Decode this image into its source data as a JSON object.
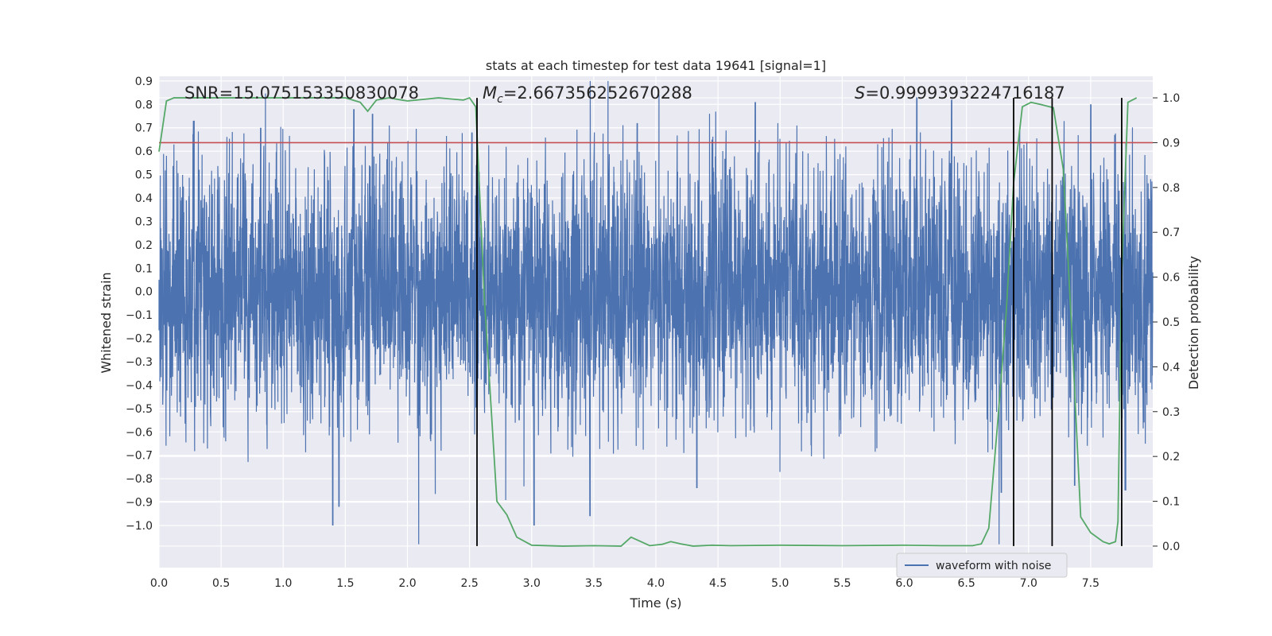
{
  "chart_data": {
    "type": "line",
    "title": "stats at each timestep for test data 19641 [signal=1]",
    "xlabel": "Time (s)",
    "ylabel": "Whitened strain",
    "y2label": "Detection probability",
    "xlim": [
      0.0,
      8.0
    ],
    "ylim": [
      -1.18,
      0.92
    ],
    "y2lim": [
      -0.048,
      1.048
    ],
    "x_ticks": [
      0.0,
      0.5,
      1.0,
      1.5,
      2.0,
      2.5,
      3.0,
      3.5,
      4.0,
      4.5,
      5.0,
      5.5,
      6.0,
      6.5,
      7.0,
      7.5
    ],
    "x_tick_labels": [
      "0.0",
      "0.5",
      "1.0",
      "1.5",
      "2.0",
      "2.5",
      "3.0",
      "3.5",
      "4.0",
      "4.5",
      "5.0",
      "5.5",
      "6.0",
      "6.5",
      "7.0",
      "7.5"
    ],
    "y_ticks": [
      -1.0,
      -0.9,
      -0.8,
      -0.7,
      -0.6,
      -0.5,
      -0.4,
      -0.3,
      -0.2,
      -0.1,
      0.0,
      0.1,
      0.2,
      0.3,
      0.4,
      0.5,
      0.6,
      0.7,
      0.8,
      0.9
    ],
    "y_tick_labels": [
      "−1.0",
      "−0.9",
      "−0.8",
      "−0.7",
      "−0.6",
      "−0.5",
      "−0.4",
      "−0.3",
      "−0.2",
      "−0.1",
      "0.0",
      "0.1",
      "0.2",
      "0.3",
      "0.4",
      "0.5",
      "0.6",
      "0.7",
      "0.8",
      "0.9"
    ],
    "y2_ticks": [
      0.0,
      0.1,
      0.2,
      0.3,
      0.4,
      0.5,
      0.6,
      0.7,
      0.8,
      0.9,
      1.0
    ],
    "y2_tick_labels": [
      "0.0",
      "0.1",
      "0.2",
      "0.3",
      "0.4",
      "0.5",
      "0.6",
      "0.7",
      "0.8",
      "0.9",
      "1.0"
    ],
    "grid": true,
    "legend": {
      "entries": [
        "waveform with noise"
      ],
      "placement": "lower-right"
    },
    "annotations": {
      "snr": "SNR=15.075153350830078",
      "mc_symbol": "M",
      "mc_sub": "c",
      "mc_value": "=2.667356252670288",
      "s_symbol": "S",
      "s_value": "=0.9999393224716187"
    },
    "waveform": {
      "name": "waveform with noise",
      "color": "#4c72b0",
      "description_free": true,
      "x_range": [
        0.0,
        8.0
      ],
      "typical_amplitude": 0.3,
      "peaks": [
        [
          0.28,
          0.73
        ],
        [
          0.82,
          0.7
        ],
        [
          1.4,
          -1.0
        ],
        [
          1.45,
          -0.92
        ],
        [
          1.57,
          0.78
        ],
        [
          1.72,
          0.76
        ],
        [
          2.52,
          0.68
        ],
        [
          3.02,
          -1.0
        ],
        [
          3.47,
          -0.96
        ],
        [
          3.85,
          0.72
        ],
        [
          4.33,
          -0.84
        ],
        [
          4.8,
          0.81
        ],
        [
          6.1,
          0.83
        ],
        [
          6.38,
          0.82
        ],
        [
          6.78,
          -0.86
        ],
        [
          7.37,
          -0.83
        ],
        [
          7.5,
          0.8
        ],
        [
          7.78,
          -0.85
        ],
        [
          0.52,
          -0.58
        ],
        [
          2.9,
          -0.55
        ]
      ]
    },
    "threshold": {
      "value": 0.9,
      "axis": "y2",
      "color": "#c44e52"
    },
    "probability": {
      "color": "#55a868",
      "axis": "y2",
      "x": [
        0.0,
        0.06,
        0.12,
        0.25,
        0.5,
        0.75,
        1.0,
        1.25,
        1.5,
        1.62,
        1.68,
        1.75,
        1.85,
        2.0,
        2.25,
        2.45,
        2.5,
        2.55,
        2.62,
        2.72,
        2.8,
        2.88,
        3.0,
        3.25,
        3.5,
        3.72,
        3.8,
        3.88,
        3.95,
        4.05,
        4.12,
        4.2,
        4.3,
        4.45,
        4.6,
        5.0,
        5.5,
        6.0,
        6.3,
        6.55,
        6.62,
        6.68,
        6.75,
        6.82,
        6.88,
        6.95,
        7.02,
        7.1,
        7.2,
        7.28,
        7.35,
        7.42,
        7.5,
        7.6,
        7.65,
        7.7,
        7.72,
        7.75,
        7.8,
        7.87
      ],
      "y": [
        0.88,
        0.993,
        1.0,
        1.0,
        1.0,
        1.0,
        1.0,
        1.0,
        1.0,
        0.99,
        0.97,
        0.995,
        1.0,
        0.993,
        1.0,
        0.995,
        1.0,
        0.98,
        0.55,
        0.1,
        0.07,
        0.02,
        0.002,
        0.0,
        0.001,
        0.0,
        0.02,
        0.01,
        0.001,
        0.004,
        0.01,
        0.005,
        0.0,
        0.002,
        0.001,
        0.002,
        0.001,
        0.002,
        0.001,
        0.001,
        0.005,
        0.04,
        0.27,
        0.52,
        0.81,
        0.98,
        0.99,
        0.985,
        0.978,
        0.84,
        0.47,
        0.065,
        0.03,
        0.01,
        0.005,
        0.01,
        0.055,
        0.61,
        0.99,
        1.0
      ]
    },
    "vlines": [
      2.56,
      6.88,
      7.19,
      7.75
    ]
  }
}
